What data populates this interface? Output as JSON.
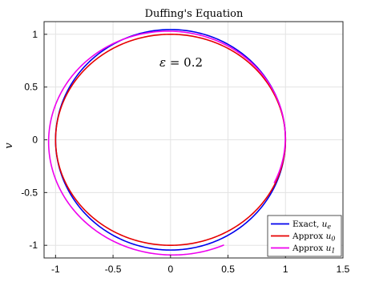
{
  "chart_data": {
    "type": "line",
    "title": "Duffing's Equation",
    "xlabel": "",
    "ylabel": "v",
    "xlim": [
      -1.1,
      1.5
    ],
    "ylim": [
      -1.12,
      1.12
    ],
    "xticks": [
      -1,
      -0.5,
      0,
      0.5,
      1,
      1.5
    ],
    "xtick_labels": [
      "-1",
      "-0.5",
      "0",
      "0.5",
      "1",
      "1.5"
    ],
    "yticks": [
      -1,
      -0.5,
      0,
      0.5,
      1
    ],
    "ytick_labels": [
      "-1",
      "-0.5",
      "0",
      "0.5",
      "1"
    ],
    "grid": true,
    "annotation": {
      "symbol": "ε",
      "text": " = 0.2"
    },
    "legend_position": "bottom-right",
    "series": [
      {
        "name": "Exact, u_e",
        "legend_text": "Exact, ",
        "legend_math": "u",
        "legend_sub": "e",
        "color": "#0000ee",
        "shape": "ellipse",
        "center": [
          0,
          0
        ],
        "rx": 1.0,
        "ry": 1.045
      },
      {
        "name": "Approx u_0",
        "legend_text": "Approx ",
        "legend_math": "u",
        "legend_sub": "0",
        "color": "#e60000",
        "shape": "ellipse",
        "center": [
          0,
          0
        ],
        "rx": 1.0,
        "ry": 1.0
      },
      {
        "name": "Approx u_1",
        "legend_text": "Approx ",
        "legend_math": "u",
        "legend_sub": "1",
        "color": "#ee00ee",
        "shape": "spiral",
        "start": [
          0.99,
          -0.45
        ],
        "end_angle_deg": 295,
        "r_start": 0.99,
        "r_end": 1.1
      }
    ]
  }
}
